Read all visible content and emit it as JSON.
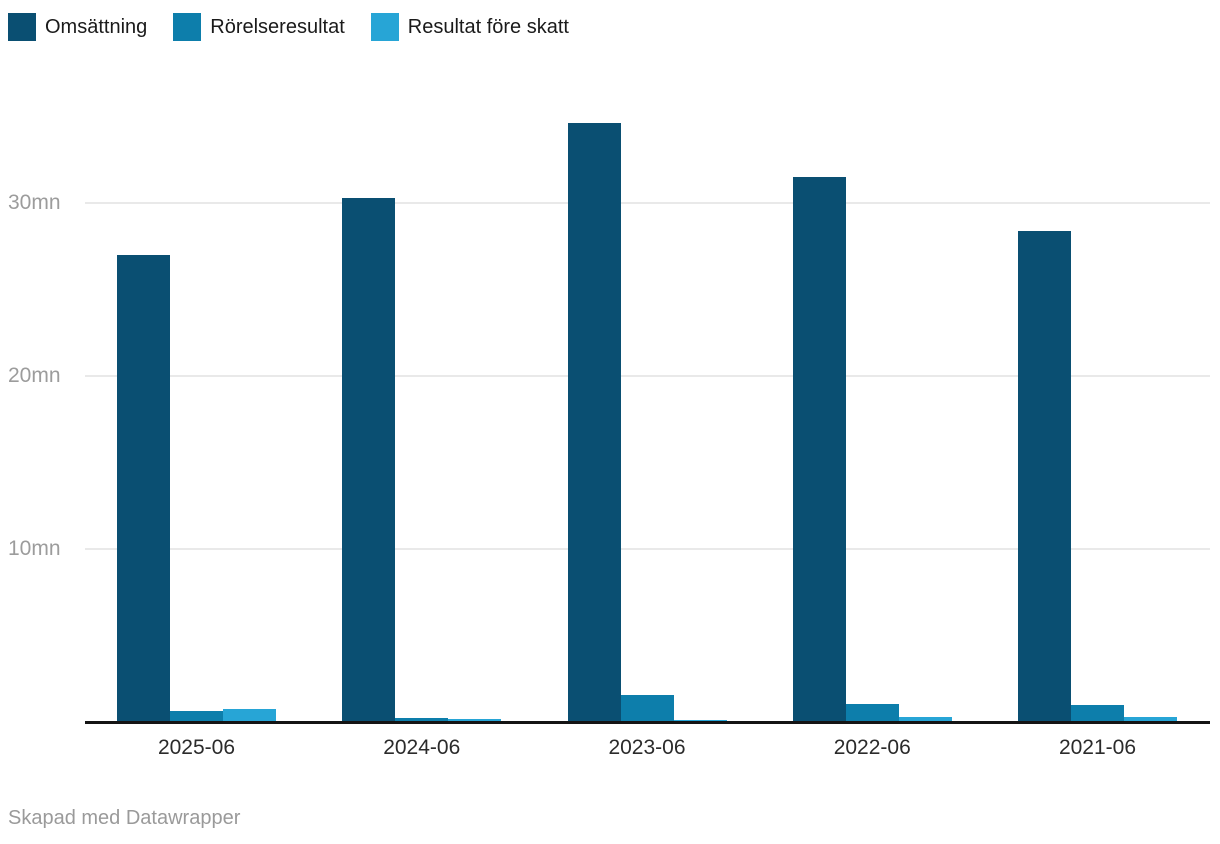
{
  "chart_data": {
    "type": "bar",
    "title": "",
    "xlabel": "",
    "ylabel": "",
    "categories": [
      "2025-06",
      "2024-06",
      "2023-06",
      "2022-06",
      "2021-06"
    ],
    "series": [
      {
        "name": "Omsättning",
        "color": "#0a4f72",
        "values": [
          27.0,
          30.3,
          34.6,
          31.5,
          28.4
        ]
      },
      {
        "name": "Rörelseresultat",
        "color": "#0d7eab",
        "values": [
          0.65,
          0.25,
          1.55,
          1.05,
          1.0
        ]
      },
      {
        "name": "Resultat före skatt",
        "color": "#27a5d6",
        "values": [
          0.78,
          0.15,
          0.1,
          0.3,
          0.3
        ]
      }
    ],
    "yticks": [
      {
        "value": 10,
        "label": "10mn"
      },
      {
        "value": 20,
        "label": "20mn"
      },
      {
        "value": 30,
        "label": "30mn"
      }
    ],
    "ylim": [
      0,
      36.5
    ],
    "unit": "mn",
    "grid": "horizontal",
    "legend_position": "top-left"
  },
  "footer": {
    "credit": "Skapad med Datawrapper"
  },
  "colors": {
    "background": "#ffffff",
    "axis": "#141414",
    "grid": "#e9e9e9",
    "ytick_label": "#9c9c9c",
    "xtick_label": "#2b2b2b",
    "legend_label": "#1a1a1a",
    "footer_text": "#9a9a9a"
  }
}
